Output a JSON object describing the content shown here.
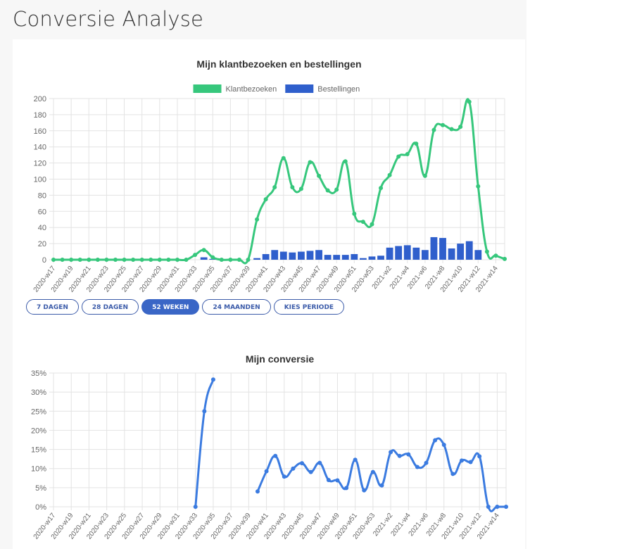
{
  "page": {
    "title": "Conversie Analyse"
  },
  "buttons": [
    {
      "label": "7 DAGEN",
      "active": false,
      "name": "period-7-days-button"
    },
    {
      "label": "28 DAGEN",
      "active": false,
      "name": "period-28-days-button"
    },
    {
      "label": "52 WEKEN",
      "active": true,
      "name": "period-52-weeks-button"
    },
    {
      "label": "24 MAANDEN",
      "active": false,
      "name": "period-24-months-button"
    },
    {
      "label": "KIES PERIODE",
      "active": false,
      "name": "choose-period-button"
    }
  ],
  "colors": {
    "visits": "#36c77c",
    "orders": "#2f5fcc",
    "conversion": "#3b7be0"
  },
  "chart_data": [
    {
      "type": "line",
      "title": "Mijn klantbezoeken en bestellingen",
      "x": [
        "2020-w17",
        "2020-w18",
        "2020-w19",
        "2020-w20",
        "2020-w21",
        "2020-w22",
        "2020-w23",
        "2020-w24",
        "2020-w25",
        "2020-w26",
        "2020-w27",
        "2020-w28",
        "2020-w29",
        "2020-w30",
        "2020-w31",
        "2020-w32",
        "2020-w33",
        "2020-w34",
        "2020-w35",
        "2020-w36",
        "2020-w37",
        "2020-w38",
        "2020-w39",
        "2020-w40",
        "2020-w41",
        "2020-w42",
        "2020-w43",
        "2020-w44",
        "2020-w45",
        "2020-w46",
        "2020-w47",
        "2020-w48",
        "2020-w49",
        "2020-w50",
        "2020-w51",
        "2020-w52",
        "2020-w53",
        "2021-w1",
        "2021-w2",
        "2021-w3",
        "2021-w4",
        "2021-w5",
        "2021-w6",
        "2021-w7",
        "2021-w8",
        "2021-w9",
        "2021-w10",
        "2021-w11",
        "2021-w12",
        "2021-w13",
        "2021-w14",
        "2021-w15"
      ],
      "tick_labels": [
        "2020-w17",
        "2020-w19",
        "2020-w21",
        "2020-w23",
        "2020-w25",
        "2020-w27",
        "2020-w29",
        "2020-w31",
        "2020-w33",
        "2020-w35",
        "2020-w37",
        "2020-w39",
        "2020-w41",
        "2020-w43",
        "2020-w45",
        "2020-w47",
        "2020-w49",
        "2020-w51",
        "2020-w53",
        "2021-w2",
        "2021-w4",
        "2021-w6",
        "2021-w8",
        "2021-w10",
        "2021-w12",
        "2021-w14"
      ],
      "series": [
        {
          "name": "Klantbezoeken",
          "kind": "line",
          "values": [
            0,
            0,
            0,
            0,
            0,
            0,
            0,
            0,
            0,
            0,
            0,
            0,
            0,
            0,
            0,
            0,
            6,
            12,
            3,
            0,
            0,
            0,
            0,
            50,
            75,
            90,
            126,
            90,
            88,
            121,
            104,
            86,
            87,
            122,
            57,
            47,
            44,
            89,
            105,
            128,
            131,
            144,
            104,
            161,
            167,
            162,
            165,
            196,
            91,
            10,
            5,
            1
          ]
        },
        {
          "name": "Bestellingen",
          "kind": "bar",
          "values": [
            0,
            0,
            0,
            0,
            0,
            0,
            0,
            0,
            0,
            0,
            0,
            0,
            0,
            0,
            0,
            0,
            0,
            3,
            1,
            0,
            0,
            0,
            0,
            2,
            7,
            12,
            10,
            9,
            10,
            11,
            12,
            6,
            6,
            6,
            7,
            2,
            4,
            5,
            15,
            17,
            18,
            15,
            12,
            28,
            27,
            14,
            20,
            23,
            12,
            0,
            0,
            0
          ]
        }
      ],
      "ylim": [
        0,
        200
      ],
      "yticks": [
        "0",
        "20",
        "40",
        "60",
        "80",
        "100",
        "120",
        "140",
        "160",
        "180",
        "200"
      ],
      "legend": "top-center",
      "grid": true
    },
    {
      "type": "line",
      "title": "Mijn conversie",
      "x": [
        "2020-w17",
        "2020-w18",
        "2020-w19",
        "2020-w20",
        "2020-w21",
        "2020-w22",
        "2020-w23",
        "2020-w24",
        "2020-w25",
        "2020-w26",
        "2020-w27",
        "2020-w28",
        "2020-w29",
        "2020-w30",
        "2020-w31",
        "2020-w32",
        "2020-w33",
        "2020-w34",
        "2020-w35",
        "2020-w36",
        "2020-w37",
        "2020-w38",
        "2020-w39",
        "2020-w40",
        "2020-w41",
        "2020-w42",
        "2020-w43",
        "2020-w44",
        "2020-w45",
        "2020-w46",
        "2020-w47",
        "2020-w48",
        "2020-w49",
        "2020-w50",
        "2020-w51",
        "2020-w52",
        "2020-w53",
        "2021-w1",
        "2021-w2",
        "2021-w3",
        "2021-w4",
        "2021-w5",
        "2021-w6",
        "2021-w7",
        "2021-w8",
        "2021-w9",
        "2021-w10",
        "2021-w11",
        "2021-w12",
        "2021-w13",
        "2021-w14",
        "2021-w15"
      ],
      "tick_labels": [
        "2020-w17",
        "2020-w19",
        "2020-w21",
        "2020-w23",
        "2020-w25",
        "2020-w27",
        "2020-w29",
        "2020-w31",
        "2020-w33",
        "2020-w35",
        "2020-w37",
        "2020-w39",
        "2020-w41",
        "2020-w43",
        "2020-w45",
        "2020-w47",
        "2020-w49",
        "2020-w51",
        "2020-w53",
        "2021-w2",
        "2021-w4",
        "2021-w6",
        "2021-w8",
        "2021-w10",
        "2021-w12",
        "2021-w14"
      ],
      "series": [
        {
          "name": "",
          "kind": "line",
          "values": [
            null,
            null,
            null,
            null,
            null,
            null,
            null,
            null,
            null,
            null,
            null,
            null,
            null,
            null,
            null,
            null,
            0,
            25,
            33.3,
            null,
            null,
            null,
            null,
            4,
            9.3,
            13.3,
            7.9,
            10,
            11.4,
            9.1,
            11.5,
            7,
            6.9,
            4.9,
            12.3,
            4.3,
            9.1,
            5.6,
            14.3,
            13.3,
            13.7,
            10.4,
            11.5,
            17.4,
            16.2,
            8.6,
            12.1,
            11.7,
            13.2,
            0,
            0,
            0
          ]
        }
      ],
      "ylim": [
        0,
        35
      ],
      "yticks": [
        "0%",
        "5%",
        "10%",
        "15%",
        "20%",
        "25%",
        "30%",
        "35%"
      ],
      "grid": true
    }
  ]
}
